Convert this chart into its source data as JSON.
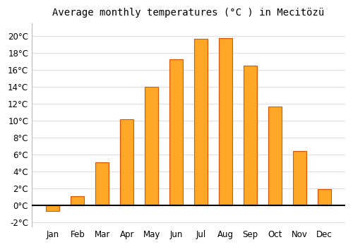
{
  "title": "Average monthly temperatures (°C ) in Mecitözü",
  "months": [
    "Jan",
    "Feb",
    "Mar",
    "Apr",
    "May",
    "Jun",
    "Jul",
    "Aug",
    "Sep",
    "Oct",
    "Nov",
    "Dec"
  ],
  "temperatures": [
    -0.7,
    1.1,
    5.1,
    10.2,
    14.0,
    17.3,
    19.7,
    19.8,
    16.5,
    11.7,
    6.4,
    1.9
  ],
  "bar_color": "#FFA726",
  "bar_edge_color": "#E65100",
  "background_color": "#ffffff",
  "plot_bg_color": "#ffffff",
  "grid_color": "#e0e0e0",
  "ylim": [
    -2.5,
    21.5
  ],
  "yticks": [
    -2,
    0,
    2,
    4,
    6,
    8,
    10,
    12,
    14,
    16,
    18,
    20
  ],
  "title_fontsize": 10,
  "tick_fontsize": 8.5,
  "bar_width": 0.55
}
